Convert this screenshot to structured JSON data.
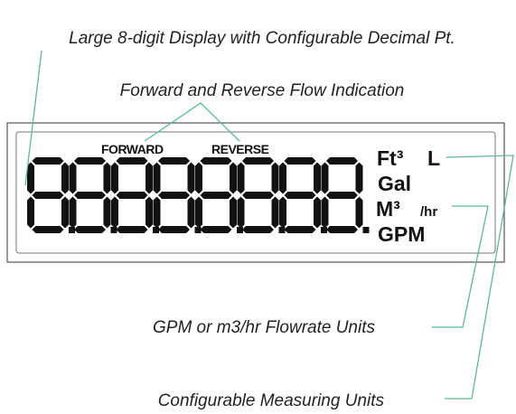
{
  "callouts": {
    "display": "Large 8-digit Display with Configurable Decimal Pt.",
    "flow": "Forward and Reverse Flow Indication",
    "flowrate_units": "GPM or m3/hr Flowrate Units",
    "measuring_units": "Configurable Measuring Units"
  },
  "lcd": {
    "forward": "FORWARD",
    "reverse": "REVERSE",
    "units": {
      "cubic_feet": "Ft³",
      "liters": "L",
      "gallons": "Gal",
      "cubic_meters": "M³",
      "per_hour": "/hr",
      "gpm": "GPM"
    }
  }
}
